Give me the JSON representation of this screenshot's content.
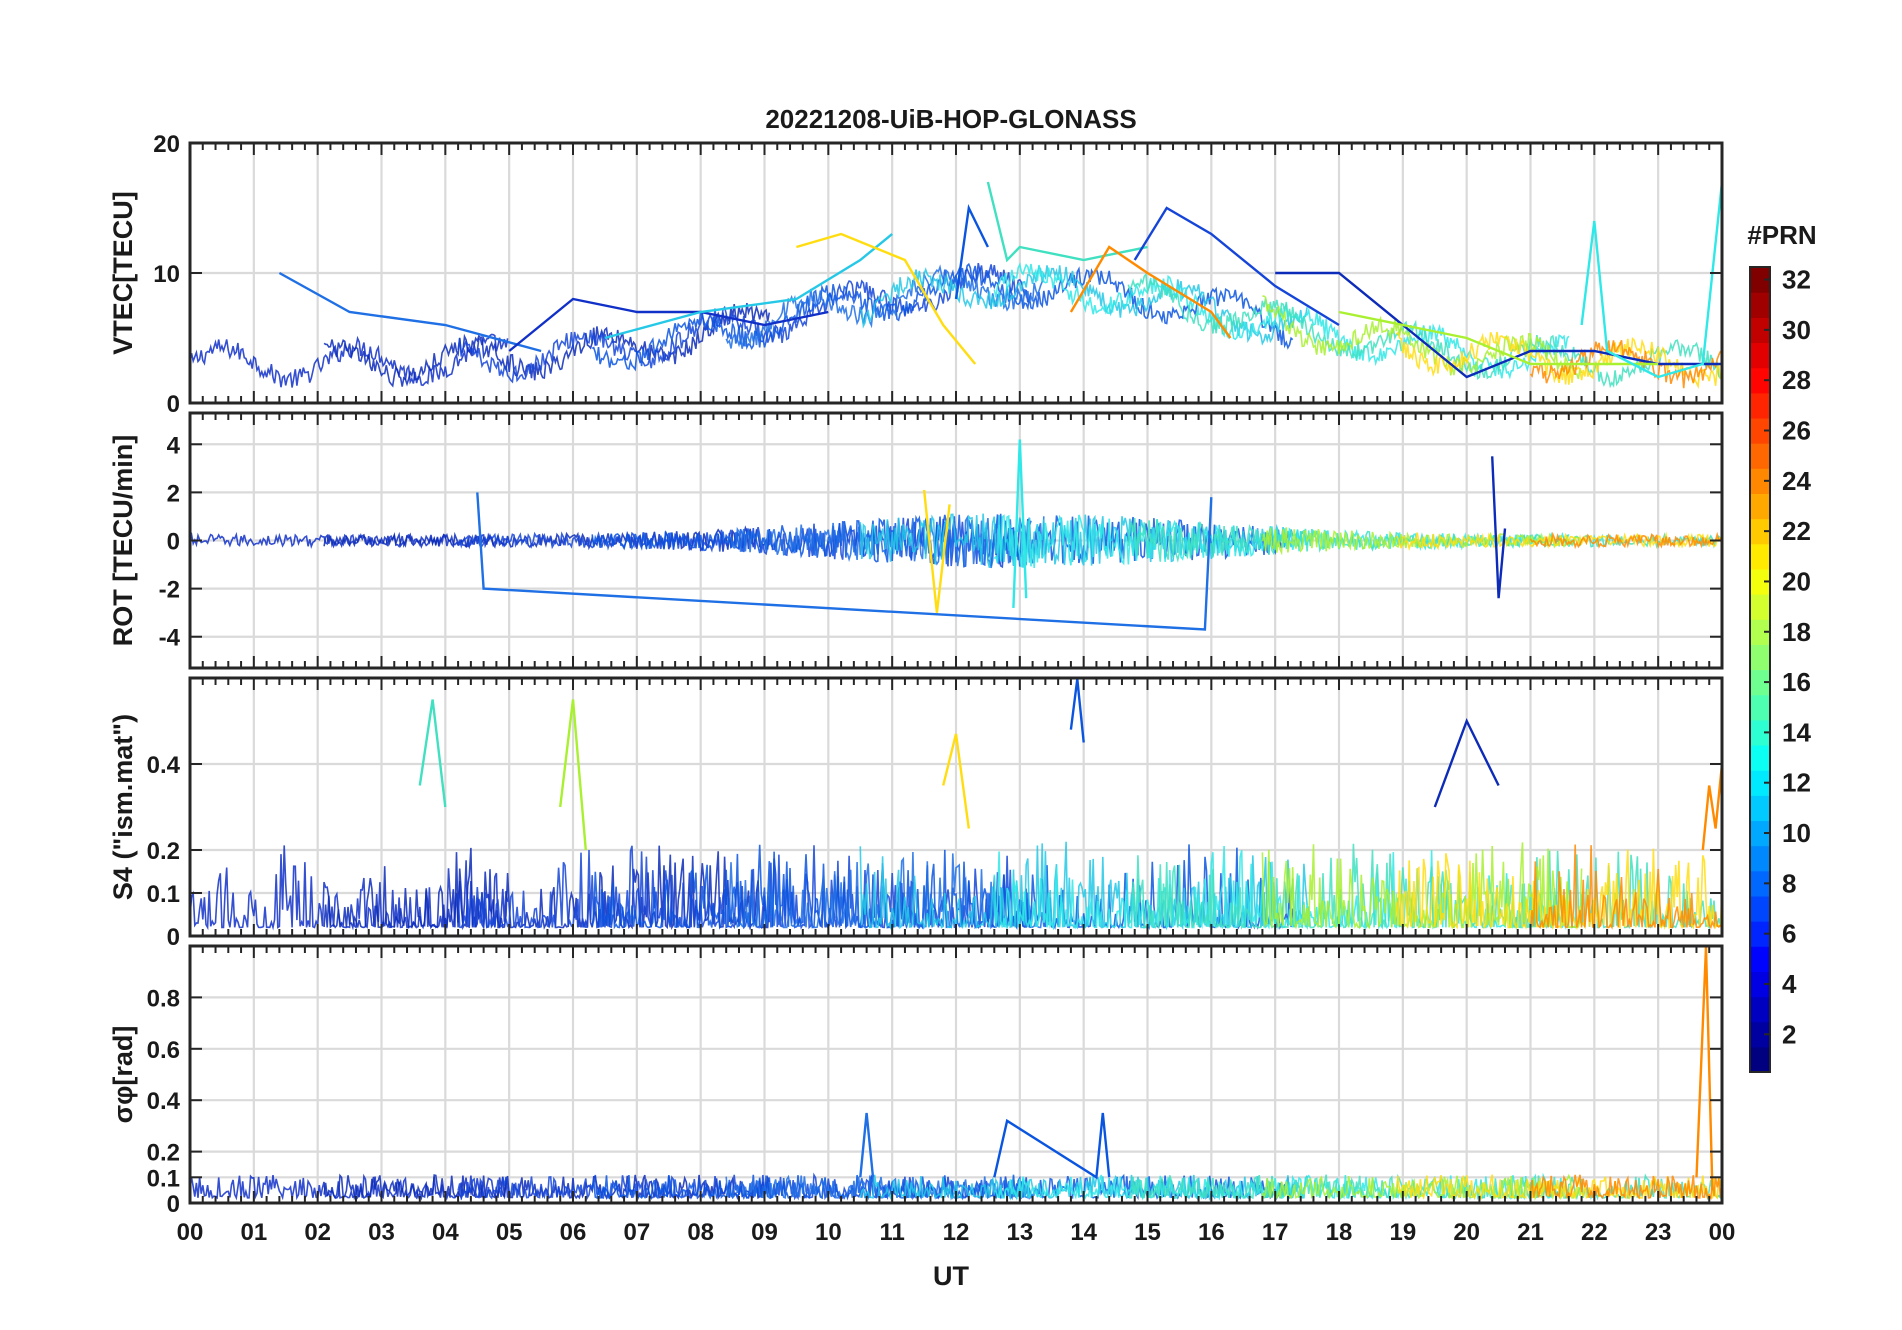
{
  "figure": {
    "title": "20221208-UiB-HOP-GLONASS",
    "xlabel": "UT",
    "colorbar_label": "#PRN"
  },
  "chart_data": [
    {
      "type": "line",
      "panel": "vtec",
      "ylabel": "VTEC[TECU]",
      "xlim": [
        0,
        24
      ],
      "ylim": [
        0,
        20
      ],
      "yticks": [
        0,
        10,
        20
      ],
      "xtick_labels": [
        "00",
        "01",
        "02",
        "03",
        "04",
        "05",
        "06",
        "07",
        "08",
        "09",
        "10",
        "11",
        "12",
        "13",
        "14",
        "15",
        "16",
        "17",
        "18",
        "19",
        "20",
        "21",
        "22",
        "23",
        "00"
      ],
      "grid": true,
      "series": [
        {
          "prn": 7,
          "color": "#1f6fe5",
          "x": [
            1.4,
            2.5,
            4.0,
            5.5
          ],
          "y": [
            10,
            7,
            6,
            4
          ]
        },
        {
          "prn": 3,
          "color": "#1030c8",
          "x": [
            5.0,
            6.0,
            7.0,
            8.0,
            9.0,
            10.0
          ],
          "y": [
            4,
            8,
            7,
            7,
            6,
            7
          ]
        },
        {
          "prn": 11,
          "color": "#25c8e6",
          "x": [
            6.5,
            8.0,
            9.5,
            10.5,
            11.0
          ],
          "y": [
            5,
            7,
            8,
            11,
            13
          ]
        },
        {
          "prn": 20,
          "color": "#ffdd10",
          "x": [
            9.5,
            10.2,
            11.2,
            11.8,
            12.3
          ],
          "y": [
            12,
            13,
            11,
            6,
            3
          ]
        },
        {
          "prn": 6,
          "color": "#0a55e0",
          "x": [
            12.0,
            12.2,
            12.5
          ],
          "y": [
            8,
            15,
            12
          ]
        },
        {
          "prn": 14,
          "color": "#40e0c0",
          "x": [
            12.5,
            12.8,
            13.0,
            14.0,
            15.0
          ],
          "y": [
            17,
            11,
            12,
            11,
            12
          ]
        },
        {
          "prn": 23,
          "color": "#ff8a00",
          "x": [
            13.8,
            14.4,
            15.0,
            16.0,
            16.3
          ],
          "y": [
            7,
            12,
            10,
            7,
            5
          ]
        },
        {
          "prn": 5,
          "color": "#1545d8",
          "x": [
            14.8,
            15.3,
            16.0,
            17.0,
            18.0
          ],
          "y": [
            11,
            15,
            13,
            9,
            6
          ]
        },
        {
          "prn": 4,
          "color": "#0c2bb8",
          "x": [
            17.0,
            18.0,
            19.0,
            20.0,
            21.0,
            22.0,
            23.0,
            24.0
          ],
          "y": [
            10,
            10,
            6,
            2,
            4,
            4,
            3,
            3
          ]
        },
        {
          "prn": 18,
          "color": "#a8f030",
          "x": [
            18.0,
            19.0,
            20.0,
            21.0,
            22.0,
            23.0
          ],
          "y": [
            7,
            6,
            5,
            3,
            3,
            3
          ]
        },
        {
          "prn": 12,
          "color": "#30e8e8",
          "x": [
            21.8,
            22.0,
            22.2,
            23.0,
            23.7,
            24.0
          ],
          "y": [
            6,
            14,
            4,
            2,
            3,
            17
          ]
        }
      ]
    },
    {
      "type": "line",
      "panel": "rot",
      "ylabel": "ROT [TECU/min]",
      "xlim": [
        0,
        24
      ],
      "ylim": [
        -5.3,
        5.3
      ],
      "yticks": [
        -4,
        -2,
        0,
        2,
        4
      ],
      "grid": true,
      "series": [
        {
          "prn": 7,
          "color": "#1f6fe5",
          "x": [
            4.5,
            4.6,
            15.9,
            16.0
          ],
          "y": [
            2,
            -2,
            -3.7,
            1.8
          ]
        },
        {
          "prn": 12,
          "color": "#30e8e8",
          "x": [
            12.9,
            13.0,
            13.1
          ],
          "y": [
            -2.8,
            4.2,
            -2.4
          ]
        },
        {
          "prn": 4,
          "color": "#0c2bb8",
          "x": [
            20.4,
            20.5,
            20.6
          ],
          "y": [
            3.5,
            -2.4,
            0.5
          ]
        },
        {
          "prn": 20,
          "color": "#ffdd10",
          "x": [
            11.5,
            11.7,
            11.9
          ],
          "y": [
            2.1,
            -3,
            1.5
          ]
        }
      ]
    },
    {
      "type": "line",
      "panel": "s4",
      "ylabel": "S4 (\"ism.mat\")",
      "xlim": [
        0,
        24
      ],
      "ylim": [
        0,
        0.6
      ],
      "yticks": [
        0,
        0.1,
        0.2,
        0.4
      ],
      "grid": true,
      "series": [
        {
          "prn": 14,
          "color": "#40e0c0",
          "x": [
            3.6,
            3.8,
            4.0
          ],
          "y": [
            0.35,
            0.55,
            0.3
          ]
        },
        {
          "prn": 18,
          "color": "#a8f030",
          "x": [
            5.8,
            6.0,
            6.2
          ],
          "y": [
            0.3,
            0.55,
            0.2
          ]
        },
        {
          "prn": 20,
          "color": "#ffdd10",
          "x": [
            11.8,
            12.0,
            12.2
          ],
          "y": [
            0.35,
            0.47,
            0.25
          ]
        },
        {
          "prn": 6,
          "color": "#0a55e0",
          "x": [
            13.8,
            13.9,
            14.0
          ],
          "y": [
            0.48,
            0.62,
            0.45
          ]
        },
        {
          "prn": 4,
          "color": "#0c2bb8",
          "x": [
            19.5,
            20.0,
            20.5
          ],
          "y": [
            0.3,
            0.5,
            0.35
          ]
        },
        {
          "prn": 23,
          "color": "#ff8a00",
          "x": [
            23.7,
            23.8,
            23.9,
            24.0
          ],
          "y": [
            0.2,
            0.35,
            0.25,
            0.4
          ]
        }
      ]
    },
    {
      "type": "line",
      "panel": "sigma_phi",
      "ylabel": "σφ[rad]",
      "xlim": [
        0,
        24
      ],
      "ylim": [
        0,
        1.0
      ],
      "yticks": [
        0,
        0.1,
        0.2,
        0.4,
        0.6,
        0.8
      ],
      "grid": true,
      "series": [
        {
          "prn": 7,
          "color": "#1f6fe5",
          "x": [
            10.5,
            10.6,
            10.7
          ],
          "y": [
            0.1,
            0.35,
            0.1
          ]
        },
        {
          "prn": 6,
          "color": "#0a55e0",
          "x": [
            12.6,
            12.8,
            14.2,
            14.3,
            14.4
          ],
          "y": [
            0.1,
            0.32,
            0.1,
            0.35,
            0.1
          ]
        },
        {
          "prn": 23,
          "color": "#ff8a00",
          "x": [
            23.6,
            23.75,
            23.85
          ],
          "y": [
            0.1,
            1.0,
            0.05
          ]
        }
      ]
    }
  ],
  "colorbar": {
    "min": 1,
    "max": 32,
    "tick_labels": [
      "2",
      "4",
      "6",
      "8",
      "10",
      "12",
      "14",
      "16",
      "18",
      "20",
      "22",
      "24",
      "26",
      "28",
      "30",
      "32"
    ],
    "colormap": "jet"
  }
}
